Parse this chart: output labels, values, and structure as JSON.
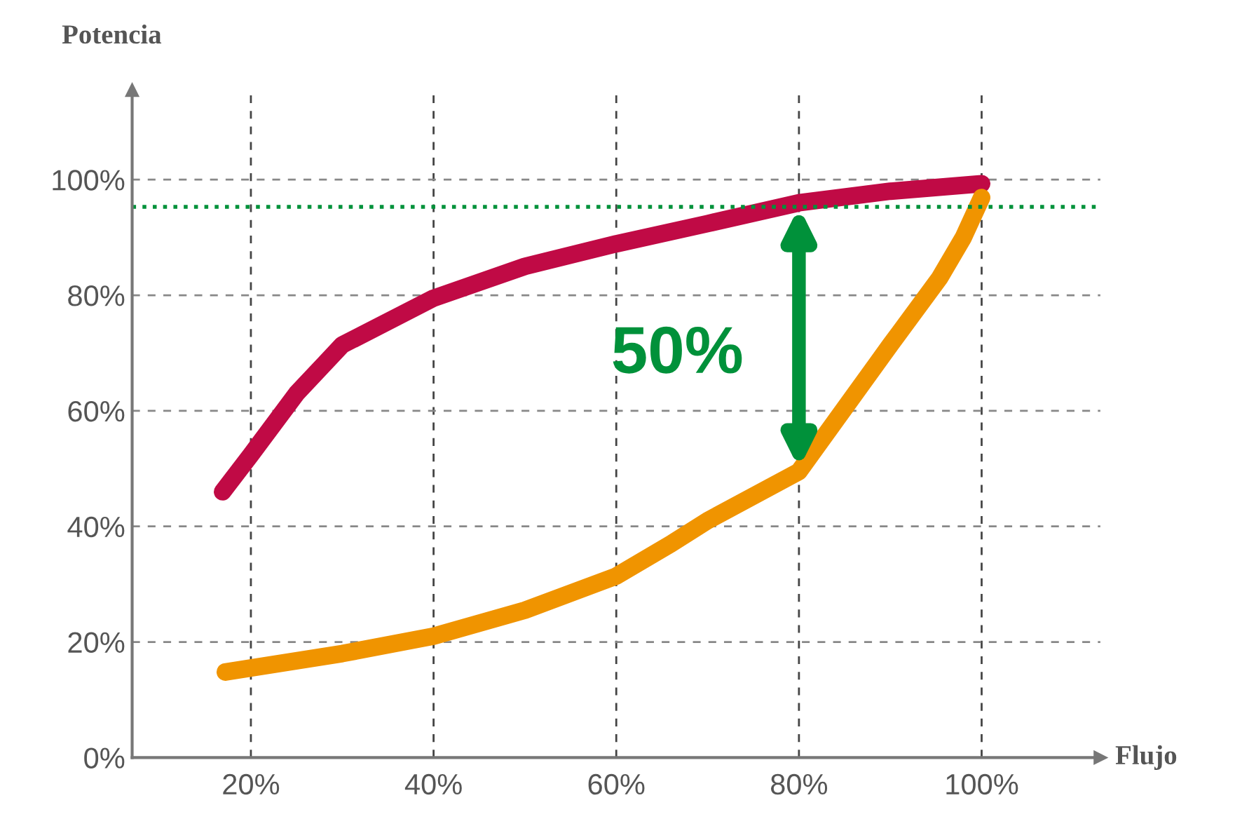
{
  "chart_data": {
    "type": "line",
    "xlabel": "Flujo",
    "ylabel": "Potencia",
    "series": [
      {
        "color": "#c00a45",
        "x": [
          16.9,
          20,
          25,
          30,
          40,
          50,
          60,
          70,
          80,
          90,
          100
        ],
        "values": [
          46,
          52.4,
          63,
          71.4,
          79.5,
          85,
          88.9,
          92.4,
          96,
          98,
          99.3
        ]
      },
      {
        "color": "#f09400",
        "x": [
          17.2,
          20,
          30,
          40,
          50,
          60,
          66,
          70,
          80,
          90,
          95.4,
          98,
          100
        ],
        "values": [
          14.8,
          15.5,
          18,
          21,
          25.5,
          31.4,
          37,
          41,
          49.5,
          71.4,
          83,
          90,
          96.9
        ]
      }
    ],
    "xlim": [
      7,
      113
    ],
    "ylim": [
      0,
      115.5
    ],
    "xticks": [
      {
        "value": 20,
        "label": "20%"
      },
      {
        "value": 40,
        "label": "40%"
      },
      {
        "value": 60,
        "label": "60%"
      },
      {
        "value": 80,
        "label": "80%"
      },
      {
        "value": 100,
        "label": "100%"
      }
    ],
    "yticks": [
      {
        "value": 0,
        "label": "0%"
      },
      {
        "value": 20,
        "label": "20%"
      },
      {
        "value": 40,
        "label": "40%"
      },
      {
        "value": 60,
        "label": "60%"
      },
      {
        "value": 80,
        "label": "80%"
      },
      {
        "value": 100,
        "label": "100%"
      }
    ],
    "ref_lines": [
      {
        "axis": "y",
        "value": 95.3,
        "color": "#00913a",
        "line_style": "dotted"
      }
    ],
    "annotations": [
      "50%"
    ],
    "grid": true,
    "line_style": "solid",
    "marker": "none"
  }
}
